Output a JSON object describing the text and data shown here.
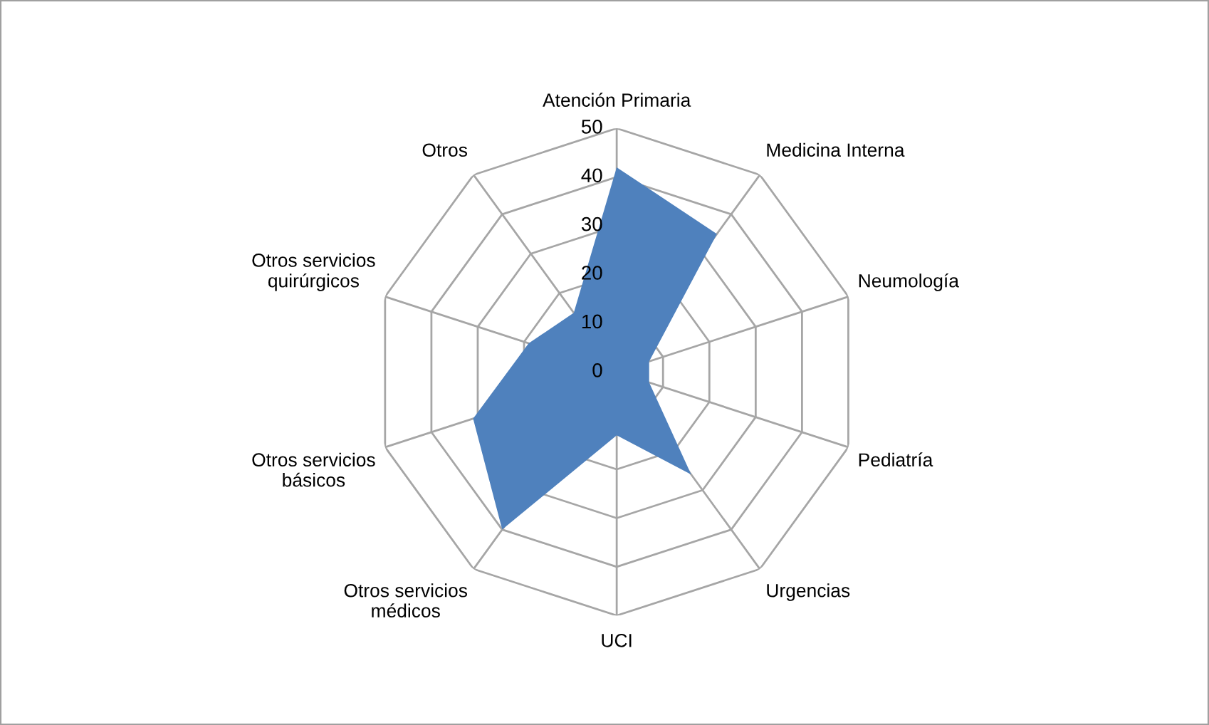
{
  "chart_data": {
    "type": "radar",
    "categories": [
      "Atención Primaria",
      "Medicina Interna",
      "Neumología",
      "Pediatría",
      "Urgencias",
      "UCI",
      "Otros servicios médicos",
      "Otros servicios básicos",
      "Otros servicios quirúrgicos",
      "Otros"
    ],
    "series": [
      {
        "color": "#4f81bd",
        "type": "area",
        "values": [
          42,
          35,
          7,
          7,
          26,
          13,
          40,
          31,
          19,
          15
        ]
      }
    ],
    "ylim": [
      0,
      50
    ],
    "yticks": [
      0,
      10,
      20,
      30,
      40,
      50
    ],
    "grid": true
  }
}
